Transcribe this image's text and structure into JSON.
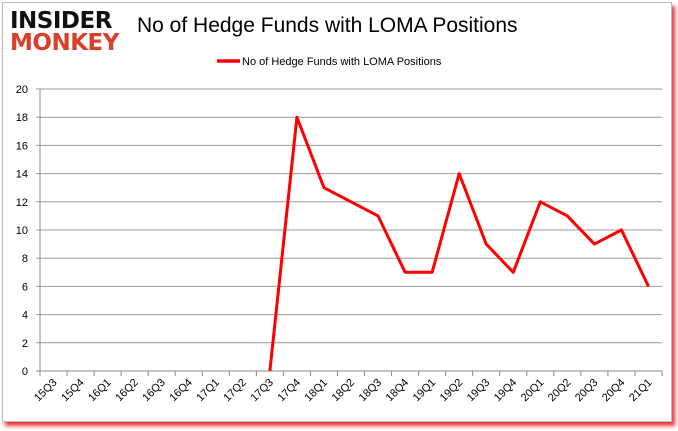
{
  "logo": {
    "line1": "INSIDER",
    "line2": "MONKEY"
  },
  "chart_data": {
    "type": "line",
    "title": "No of Hedge Funds with LOMA Positions",
    "xlabel": "",
    "ylabel": "",
    "categories": [
      "15Q3",
      "15Q4",
      "16Q1",
      "16Q2",
      "16Q3",
      "16Q4",
      "17Q1",
      "17Q2",
      "17Q3",
      "17Q4",
      "18Q1",
      "18Q2",
      "18Q3",
      "18Q4",
      "19Q1",
      "19Q2",
      "19Q3",
      "19Q4",
      "20Q1",
      "20Q2",
      "20Q3",
      "20Q4",
      "21Q1"
    ],
    "series": [
      {
        "name": "No of Hedge Funds with LOMA Positions",
        "color": "#ff0000",
        "values": [
          null,
          null,
          null,
          null,
          null,
          null,
          null,
          null,
          0,
          18,
          13,
          12,
          11,
          7,
          7,
          14,
          9,
          7,
          12,
          11,
          9,
          10,
          6
        ]
      }
    ],
    "ylim": [
      0,
      20
    ],
    "yticks": [
      0,
      2,
      4,
      6,
      8,
      10,
      12,
      14,
      16,
      18,
      20
    ],
    "grid": true,
    "legend": "top"
  }
}
